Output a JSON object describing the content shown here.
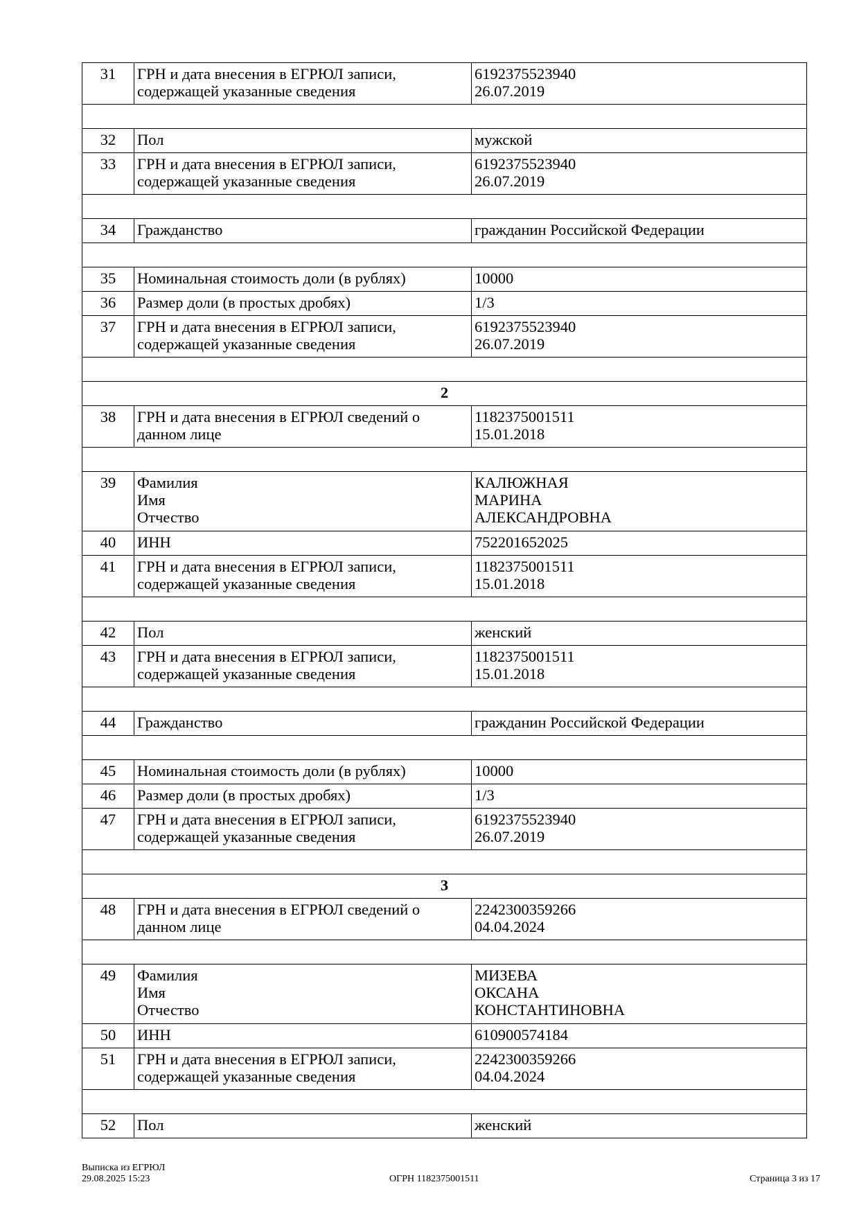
{
  "rows": [
    {
      "type": "row",
      "num": "31",
      "label": "ГРН и дата внесения в ЕГРЮЛ записи,\nсодержащей указанные сведения",
      "value": "6192375523940\n26.07.2019"
    },
    {
      "type": "empty"
    },
    {
      "type": "row",
      "num": "32",
      "label": "Пол",
      "value": "мужской"
    },
    {
      "type": "row",
      "num": "33",
      "label": "ГРН и дата внесения в ЕГРЮЛ записи,\nсодержащей указанные сведения",
      "value": "6192375523940\n26.07.2019"
    },
    {
      "type": "empty"
    },
    {
      "type": "row",
      "num": "34",
      "label": "Гражданство",
      "value": "гражданин Российской Федерации"
    },
    {
      "type": "empty"
    },
    {
      "type": "row",
      "num": "35",
      "label": "Номинальная стоимость доли (в рублях)",
      "value": "10000"
    },
    {
      "type": "row",
      "num": "36",
      "label": "Размер доли (в простых дробях)",
      "value": "1/3"
    },
    {
      "type": "row",
      "num": "37",
      "label": "ГРН и дата внесения в ЕГРЮЛ записи,\nсодержащей указанные сведения",
      "value": "6192375523940\n26.07.2019"
    },
    {
      "type": "empty"
    },
    {
      "type": "section",
      "title": "2"
    },
    {
      "type": "row",
      "num": "38",
      "label": "ГРН и дата внесения в ЕГРЮЛ сведений о\nданном лице",
      "value": "1182375001511\n15.01.2018"
    },
    {
      "type": "empty"
    },
    {
      "type": "row",
      "num": "39",
      "label": "Фамилия\nИмя\nОтчество",
      "value": "КАЛЮЖНАЯ\nМАРИНА\nАЛЕКСАНДРОВНА"
    },
    {
      "type": "row",
      "num": "40",
      "label": "ИНН",
      "value": "752201652025"
    },
    {
      "type": "row",
      "num": "41",
      "label": "ГРН и дата внесения в ЕГРЮЛ записи,\nсодержащей указанные сведения",
      "value": "1182375001511\n15.01.2018"
    },
    {
      "type": "empty"
    },
    {
      "type": "row",
      "num": "42",
      "label": "Пол",
      "value": "женский"
    },
    {
      "type": "row",
      "num": "43",
      "label": "ГРН и дата внесения в ЕГРЮЛ записи,\nсодержащей указанные сведения",
      "value": "1182375001511\n15.01.2018"
    },
    {
      "type": "empty"
    },
    {
      "type": "row",
      "num": "44",
      "label": "Гражданство",
      "value": "гражданин Российской Федерации"
    },
    {
      "type": "empty"
    },
    {
      "type": "row",
      "num": "45",
      "label": "Номинальная стоимость доли (в рублях)",
      "value": "10000"
    },
    {
      "type": "row",
      "num": "46",
      "label": "Размер доли (в простых дробях)",
      "value": "1/3"
    },
    {
      "type": "row",
      "num": "47",
      "label": "ГРН и дата внесения в ЕГРЮЛ записи,\nсодержащей указанные сведения",
      "value": "6192375523940\n26.07.2019"
    },
    {
      "type": "empty"
    },
    {
      "type": "section",
      "title": "3"
    },
    {
      "type": "row",
      "num": "48",
      "label": "ГРН и дата внесения в ЕГРЮЛ сведений о\nданном лице",
      "value": "2242300359266\n04.04.2024"
    },
    {
      "type": "empty"
    },
    {
      "type": "row",
      "num": "49",
      "label": "Фамилия\nИмя\nОтчество",
      "value": "МИЗЕВА\nОКСАНА\nКОНСТАНТИНОВНА"
    },
    {
      "type": "row",
      "num": "50",
      "label": "ИНН",
      "value": "610900574184"
    },
    {
      "type": "row",
      "num": "51",
      "label": "ГРН и дата внесения в ЕГРЮЛ записи,\nсодержащей указанные сведения",
      "value": "2242300359266\n04.04.2024"
    },
    {
      "type": "empty"
    },
    {
      "type": "row",
      "num": "52",
      "label": "Пол",
      "value": "женский"
    }
  ],
  "footer": {
    "doc_title": "Выписка из ЕГРЮЛ",
    "datetime": "29.08.2025 15:23",
    "ogrn": "ОГРН 1182375001511",
    "page": "Страница 3 из 17"
  }
}
